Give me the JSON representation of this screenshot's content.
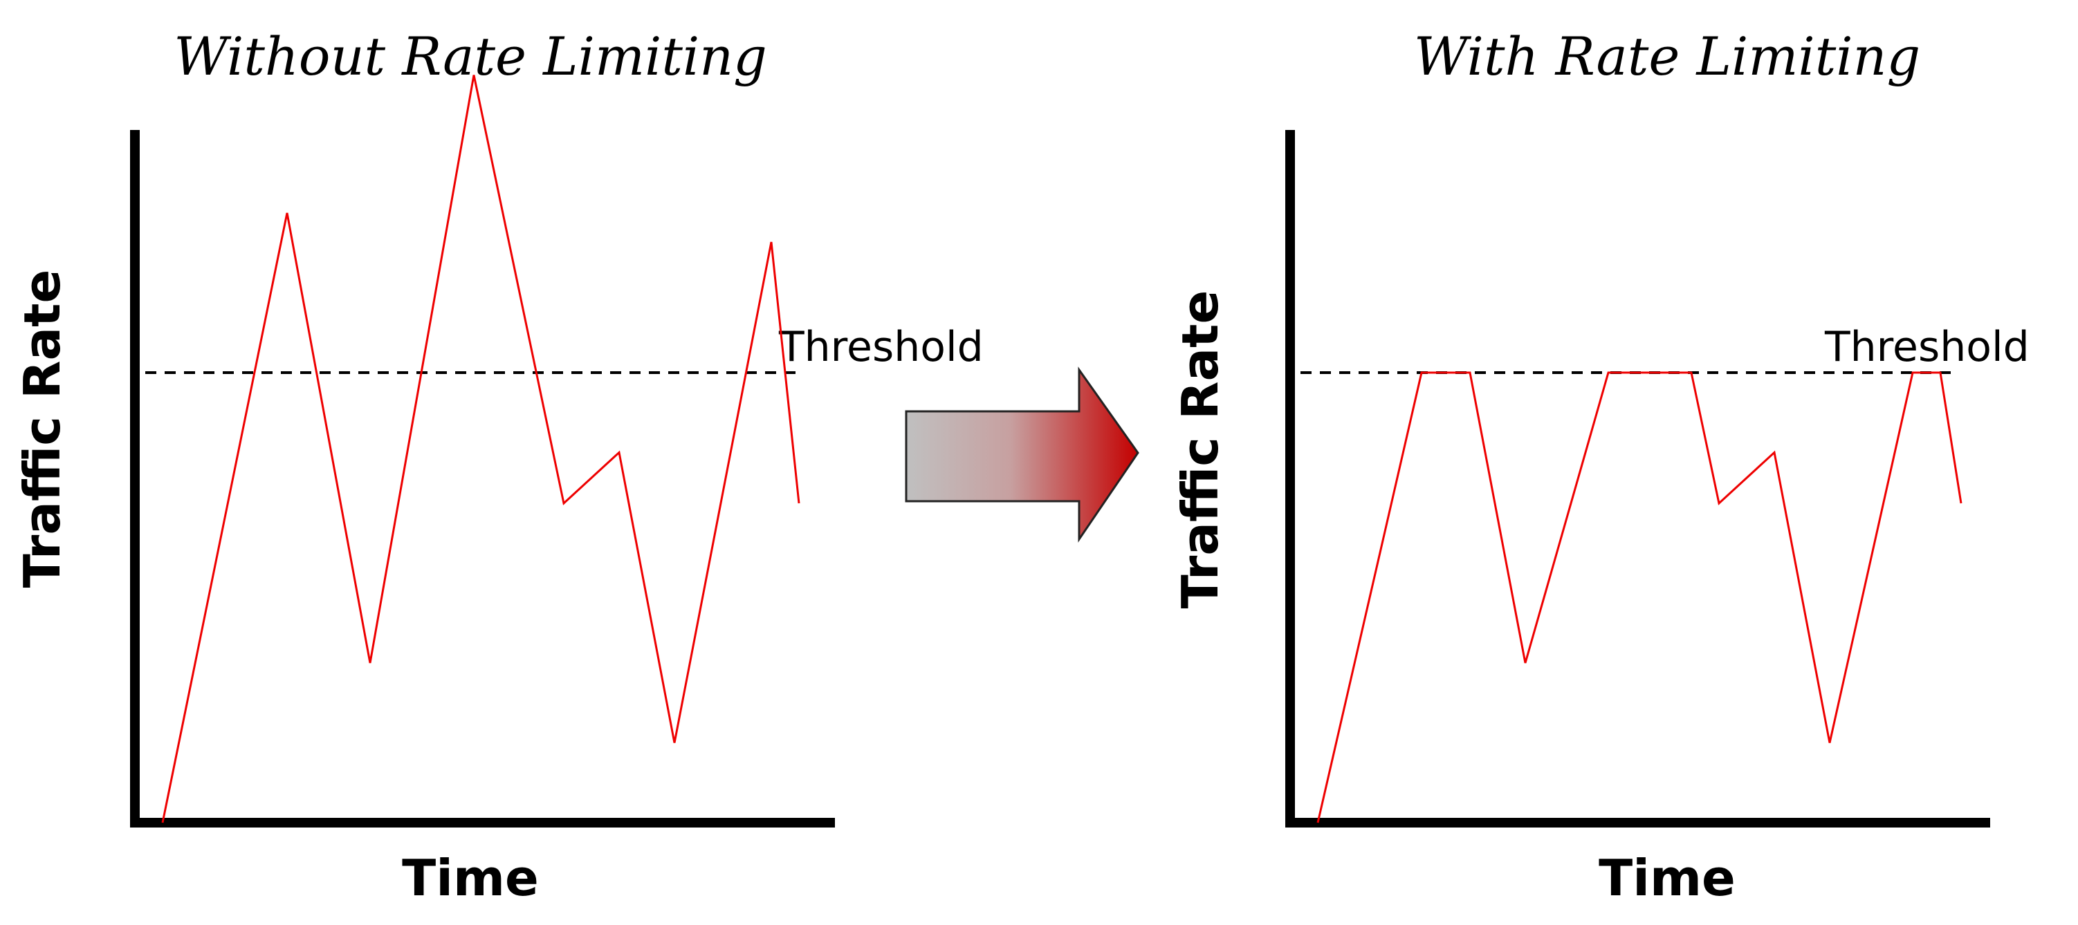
{
  "panels": [
    {
      "title": "Without Rate Limiting",
      "ylabel": "Traffic Rate",
      "xlabel": "Time",
      "threshold_label": "Threshold",
      "threshold": 62,
      "series": [
        [
          0,
          0
        ],
        [
          18,
          84
        ],
        [
          30,
          22
        ],
        [
          45,
          103
        ],
        [
          58,
          44
        ],
        [
          66,
          51
        ],
        [
          74,
          11
        ],
        [
          88,
          80
        ],
        [
          92,
          44
        ]
      ]
    },
    {
      "title": "With Rate Limiting",
      "ylabel": "Traffic Rate",
      "xlabel": "Time",
      "threshold_label": "Threshold",
      "threshold": 62,
      "series": [
        [
          0,
          0
        ],
        [
          15,
          62
        ],
        [
          22,
          62
        ],
        [
          30,
          22
        ],
        [
          42,
          62
        ],
        [
          54,
          62
        ],
        [
          58,
          44
        ],
        [
          66,
          51
        ],
        [
          74,
          11
        ],
        [
          86,
          62
        ],
        [
          90,
          62
        ],
        [
          93,
          44
        ]
      ]
    }
  ],
  "arrow": {
    "direction": "right",
    "gradient_from": "#c0c0c0",
    "gradient_to": "#c40000"
  },
  "colors": {
    "traffic": "#ee0000",
    "axis": "#000000",
    "threshold": "#000000"
  }
}
